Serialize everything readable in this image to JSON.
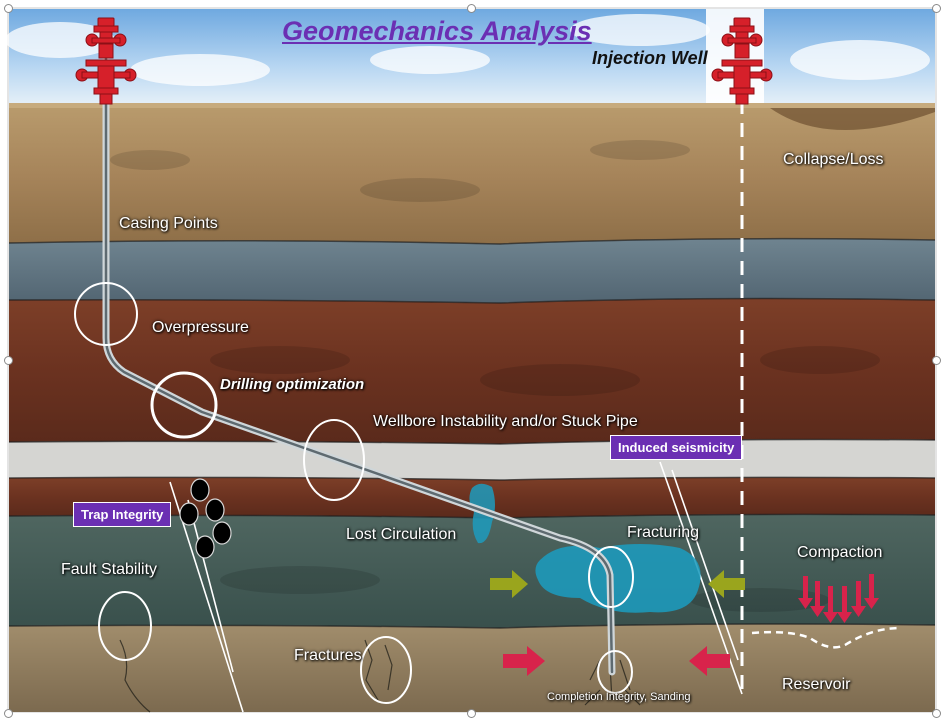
{
  "title": "Geomechanics Analysis",
  "subtitle": "Injection Well",
  "labels": {
    "casing_points": "Casing Points",
    "overpressure": "Overpressure",
    "drilling_optimization": "Drilling optimization",
    "wellbore_instability": "Wellbore Instability and/or Stuck Pipe",
    "collapse_loss": "Collapse/Loss",
    "lost_circulation": "Lost Circulation",
    "fracturing": "Fracturing",
    "fault_stability": "Fault Stability",
    "compaction": "Compaction",
    "fractures": "Fractures",
    "reservoir": "Reservoir",
    "completion_integrity": "Completion Integrity, Sanding"
  },
  "tags": {
    "induced_seismicity": "Induced seismicity",
    "trap_integrity": "Trap Integrity"
  },
  "colors": {
    "title": "#6b2fb3",
    "tag_bg": "#6b2fb3",
    "wellhead": "#d6202a",
    "fluid": "#1d9bbd",
    "arrow_green": "#9aa51d",
    "arrow_red": "#d8234b"
  }
}
